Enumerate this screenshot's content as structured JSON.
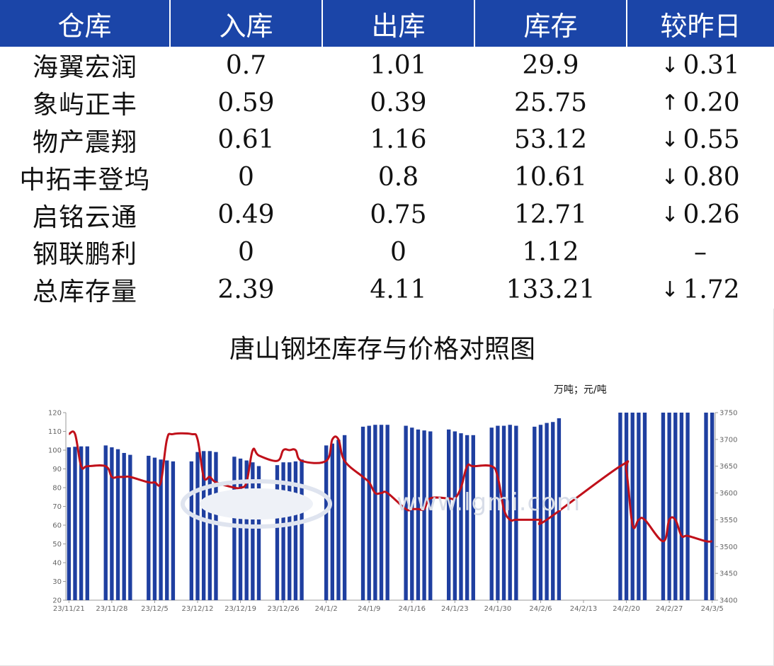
{
  "table": {
    "headers": [
      "仓库",
      "入库",
      "出库",
      "库存",
      "较昨日"
    ],
    "rows": [
      {
        "name": "海翼宏润",
        "in": "0.7",
        "out": "1.01",
        "stock": "29.9",
        "arrow": "↓",
        "change": "0.31",
        "dir": "down"
      },
      {
        "name": "象屿正丰",
        "in": "0.59",
        "out": "0.39",
        "stock": "25.75",
        "arrow": "↑",
        "change": "0.20",
        "dir": "up"
      },
      {
        "name": "物产震翔",
        "in": "0.61",
        "out": "1.16",
        "stock": "53.12",
        "arrow": "↓",
        "change": "0.55",
        "dir": "down"
      },
      {
        "name": "中拓丰登坞",
        "in": "0",
        "out": "0.8",
        "stock": "10.61",
        "arrow": "↓",
        "change": "0.80",
        "dir": "down"
      },
      {
        "name": "启铭云通",
        "in": "0.49",
        "out": "0.75",
        "stock": "12.71",
        "arrow": "↓",
        "change": "0.26",
        "dir": "down"
      },
      {
        "name": "钢联鹏利",
        "in": "0",
        "out": "0",
        "stock": "1.12",
        "arrow": "",
        "change": "–",
        "dir": "none"
      },
      {
        "name": "总库存量",
        "in": "2.39",
        "out": "4.11",
        "stock": "133.21",
        "arrow": "↓",
        "change": "1.72",
        "dir": "down"
      }
    ],
    "colors": {
      "header_bg": "#1b45a8",
      "down": "#1ba345",
      "up": "#e01010"
    }
  },
  "watermark": {
    "text": "www.lgmi.com"
  },
  "chart_data": {
    "type": "bar",
    "title": "唐山钢坯库存与价格对照图",
    "unit_label": "万吨；元/吨",
    "x_tick_labels": [
      "23/11/21",
      "23/11/28",
      "23/12/5",
      "23/12/12",
      "23/12/19",
      "23/12/26",
      "24/1/2",
      "24/1/9",
      "24/1/16",
      "24/1/23",
      "24/1/30",
      "24/2/6",
      "24/2/13",
      "24/2/20",
      "24/2/27",
      "24/3/5"
    ],
    "x_start": "2023-11-21",
    "x_end": "2024-03-05",
    "y_left": {
      "min": 20,
      "max": 120,
      "ticks": [
        20,
        30,
        40,
        50,
        60,
        70,
        80,
        90,
        100,
        110,
        120
      ]
    },
    "y_right": {
      "min": 3400,
      "max": 3750,
      "ticks": [
        3400,
        3450,
        3500,
        3550,
        3600,
        3650,
        3700,
        3750
      ]
    },
    "bar_color": "#1f3fa0",
    "line_color": "#c0101a",
    "series": [
      {
        "name": "库存",
        "axis": "left",
        "kind": "bar",
        "points": [
          [
            "2023-11-21",
            101.5
          ],
          [
            "2023-11-22",
            101.8
          ],
          [
            "2023-11-23",
            102
          ],
          [
            "2023-11-24",
            102
          ],
          [
            "2023-11-27",
            102.5
          ],
          [
            "2023-11-28",
            101.5
          ],
          [
            "2023-11-29",
            100.5
          ],
          [
            "2023-11-30",
            98.5
          ],
          [
            "2023-12-01",
            97.5
          ],
          [
            "2023-12-04",
            97
          ],
          [
            "2023-12-05",
            96
          ],
          [
            "2023-12-06",
            95
          ],
          [
            "2023-12-07",
            94.5
          ],
          [
            "2023-12-08",
            94
          ],
          [
            "2023-12-11",
            94
          ],
          [
            "2023-12-12",
            99
          ],
          [
            "2023-12-13",
            99.5
          ],
          [
            "2023-12-14",
            99.5
          ],
          [
            "2023-12-15",
            99
          ],
          [
            "2023-12-18",
            96.5
          ],
          [
            "2023-12-19",
            95.5
          ],
          [
            "2023-12-20",
            94.5
          ],
          [
            "2023-12-21",
            93.5
          ],
          [
            "2023-12-22",
            91.5
          ],
          [
            "2023-12-25",
            92
          ],
          [
            "2023-12-26",
            93.5
          ],
          [
            "2023-12-27",
            93.5
          ],
          [
            "2023-12-28",
            94
          ],
          [
            "2023-12-29",
            95
          ],
          [
            "2024-01-02",
            102.5
          ],
          [
            "2024-01-03",
            103.5
          ],
          [
            "2024-01-04",
            105.5
          ],
          [
            "2024-01-05",
            108
          ],
          [
            "2024-01-08",
            112.5
          ],
          [
            "2024-01-09",
            113
          ],
          [
            "2024-01-10",
            113.5
          ],
          [
            "2024-01-11",
            113.5
          ],
          [
            "2024-01-12",
            113.5
          ],
          [
            "2024-01-15",
            113
          ],
          [
            "2024-01-16",
            112
          ],
          [
            "2024-01-17",
            111
          ],
          [
            "2024-01-18",
            110.5
          ],
          [
            "2024-01-19",
            110
          ],
          [
            "2024-01-22",
            111
          ],
          [
            "2024-01-23",
            110
          ],
          [
            "2024-01-24",
            109
          ],
          [
            "2024-01-25",
            108
          ],
          [
            "2024-01-26",
            108
          ],
          [
            "2024-01-29",
            112
          ],
          [
            "2024-01-30",
            113
          ],
          [
            "2024-01-31",
            113
          ],
          [
            "2024-02-01",
            113.5
          ],
          [
            "2024-02-02",
            113
          ],
          [
            "2024-02-05",
            112.5
          ],
          [
            "2024-02-06",
            113.5
          ],
          [
            "2024-02-07",
            114.5
          ],
          [
            "2024-02-08",
            115
          ],
          [
            "2024-02-09",
            117
          ],
          [
            "2024-02-19",
            120
          ],
          [
            "2024-02-20",
            120
          ],
          [
            "2024-02-21",
            120
          ],
          [
            "2024-02-22",
            120
          ],
          [
            "2024-02-23",
            120
          ],
          [
            "2024-02-26",
            120
          ],
          [
            "2024-02-27",
            120
          ],
          [
            "2024-02-28",
            120
          ],
          [
            "2024-02-29",
            120
          ],
          [
            "2024-03-01",
            120
          ],
          [
            "2024-03-04",
            120
          ],
          [
            "2024-03-05",
            120
          ]
        ]
      },
      {
        "name": "价格",
        "axis": "right",
        "kind": "line",
        "points": [
          [
            "2023-11-21",
            3710
          ],
          [
            "2023-11-22",
            3710
          ],
          [
            "2023-11-23",
            3650
          ],
          [
            "2023-11-24",
            3650
          ],
          [
            "2023-11-27",
            3650
          ],
          [
            "2023-11-28",
            3630
          ],
          [
            "2023-11-29",
            3630
          ],
          [
            "2023-11-30",
            3630
          ],
          [
            "2023-12-01",
            3630
          ],
          [
            "2023-12-04",
            3620
          ],
          [
            "2023-12-05",
            3620
          ],
          [
            "2023-12-06",
            3620
          ],
          [
            "2023-12-07",
            3700
          ],
          [
            "2023-12-08",
            3710
          ],
          [
            "2023-12-11",
            3710
          ],
          [
            "2023-12-12",
            3700
          ],
          [
            "2023-12-13",
            3630
          ],
          [
            "2023-12-14",
            3630
          ],
          [
            "2023-12-15",
            3620
          ],
          [
            "2023-12-18",
            3610
          ],
          [
            "2023-12-19",
            3610
          ],
          [
            "2023-12-20",
            3620
          ],
          [
            "2023-12-21",
            3680
          ],
          [
            "2023-12-22",
            3670
          ],
          [
            "2023-12-25",
            3660
          ],
          [
            "2023-12-26",
            3680
          ],
          [
            "2023-12-27",
            3680
          ],
          [
            "2023-12-28",
            3680
          ],
          [
            "2023-12-29",
            3660
          ],
          [
            "2024-01-02",
            3660
          ],
          [
            "2024-01-03",
            3700
          ],
          [
            "2024-01-04",
            3700
          ],
          [
            "2024-01-05",
            3660
          ],
          [
            "2024-01-08",
            3630
          ],
          [
            "2024-01-09",
            3620
          ],
          [
            "2024-01-10",
            3600
          ],
          [
            "2024-01-11",
            3600
          ],
          [
            "2024-01-12",
            3600
          ],
          [
            "2024-01-15",
            3570
          ],
          [
            "2024-01-16",
            3570
          ],
          [
            "2024-01-17",
            3570
          ],
          [
            "2024-01-18",
            3570
          ],
          [
            "2024-01-19",
            3590
          ],
          [
            "2024-01-22",
            3590
          ],
          [
            "2024-01-23",
            3590
          ],
          [
            "2024-01-24",
            3610
          ],
          [
            "2024-01-25",
            3650
          ],
          [
            "2024-01-26",
            3650
          ],
          [
            "2024-01-29",
            3650
          ],
          [
            "2024-01-30",
            3630
          ],
          [
            "2024-01-31",
            3570
          ],
          [
            "2024-02-01",
            3550
          ],
          [
            "2024-02-02",
            3550
          ],
          [
            "2024-02-05",
            3550
          ],
          [
            "2024-02-06",
            3550
          ],
          [
            "2024-02-07",
            3550
          ],
          [
            "2024-02-19",
            3650
          ],
          [
            "2024-02-20",
            3640
          ],
          [
            "2024-02-21",
            3540
          ],
          [
            "2024-02-22",
            3550
          ],
          [
            "2024-02-23",
            3550
          ],
          [
            "2024-02-26",
            3510
          ],
          [
            "2024-02-27",
            3550
          ],
          [
            "2024-02-28",
            3550
          ],
          [
            "2024-02-29",
            3520
          ],
          [
            "2024-03-01",
            3520
          ],
          [
            "2024-03-04",
            3510
          ],
          [
            "2024-03-05",
            3510
          ]
        ]
      }
    ]
  }
}
